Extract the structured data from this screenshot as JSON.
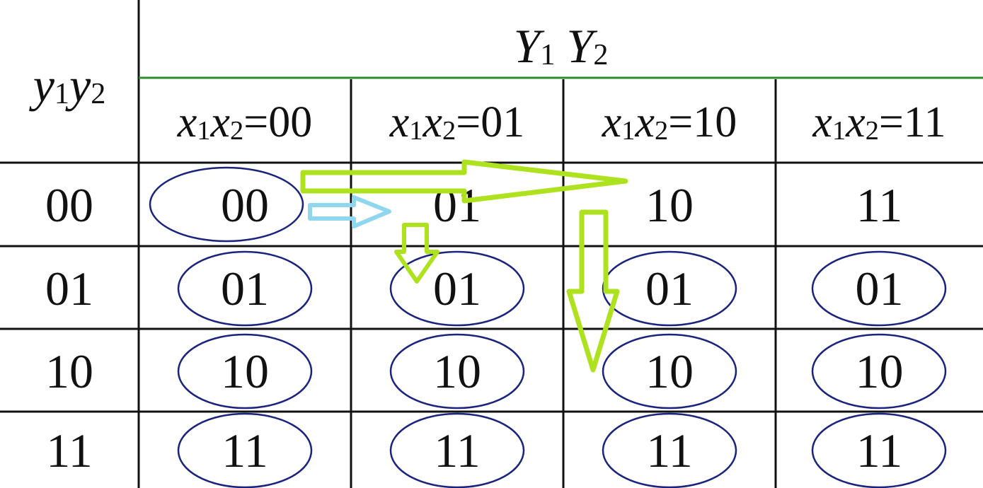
{
  "header": {
    "row_var": {
      "base1": "y",
      "sub1": "1",
      "base2": "y",
      "sub2": "2"
    },
    "out_var": {
      "base1": "Y",
      "sub1": "1",
      "base2": "Y",
      "sub2": "2"
    },
    "columns": [
      {
        "base1": "x",
        "sub1": "1",
        "base2": "x",
        "sub2": "2",
        "eq": "=00"
      },
      {
        "base1": "x",
        "sub1": "1",
        "base2": "x",
        "sub2": "2",
        "eq": "=01"
      },
      {
        "base1": "x",
        "sub1": "1",
        "base2": "x",
        "sub2": "2",
        "eq": "=10"
      },
      {
        "base1": "x",
        "sub1": "1",
        "base2": "x",
        "sub2": "2",
        "eq": "=11"
      }
    ]
  },
  "rows": [
    {
      "label": "00",
      "cells": [
        "00",
        "01",
        "10",
        "11"
      ],
      "circled": [
        true,
        false,
        false,
        false
      ]
    },
    {
      "label": "01",
      "cells": [
        "01",
        "01",
        "01",
        "01"
      ],
      "circled": [
        true,
        true,
        true,
        true
      ]
    },
    {
      "label": "10",
      "cells": [
        "10",
        "10",
        "10",
        "10"
      ],
      "circled": [
        true,
        true,
        true,
        true
      ]
    },
    {
      "label": "11",
      "cells": [
        "11",
        "11",
        "11",
        "11"
      ],
      "circled": [
        true,
        true,
        true,
        true
      ]
    }
  ],
  "colors": {
    "grid": "#111111",
    "header_rule": "#2e8b2e",
    "ellipse": "#1a237e",
    "arrow_green": "#aee21e",
    "arrow_blue": "#8fd6ee"
  }
}
